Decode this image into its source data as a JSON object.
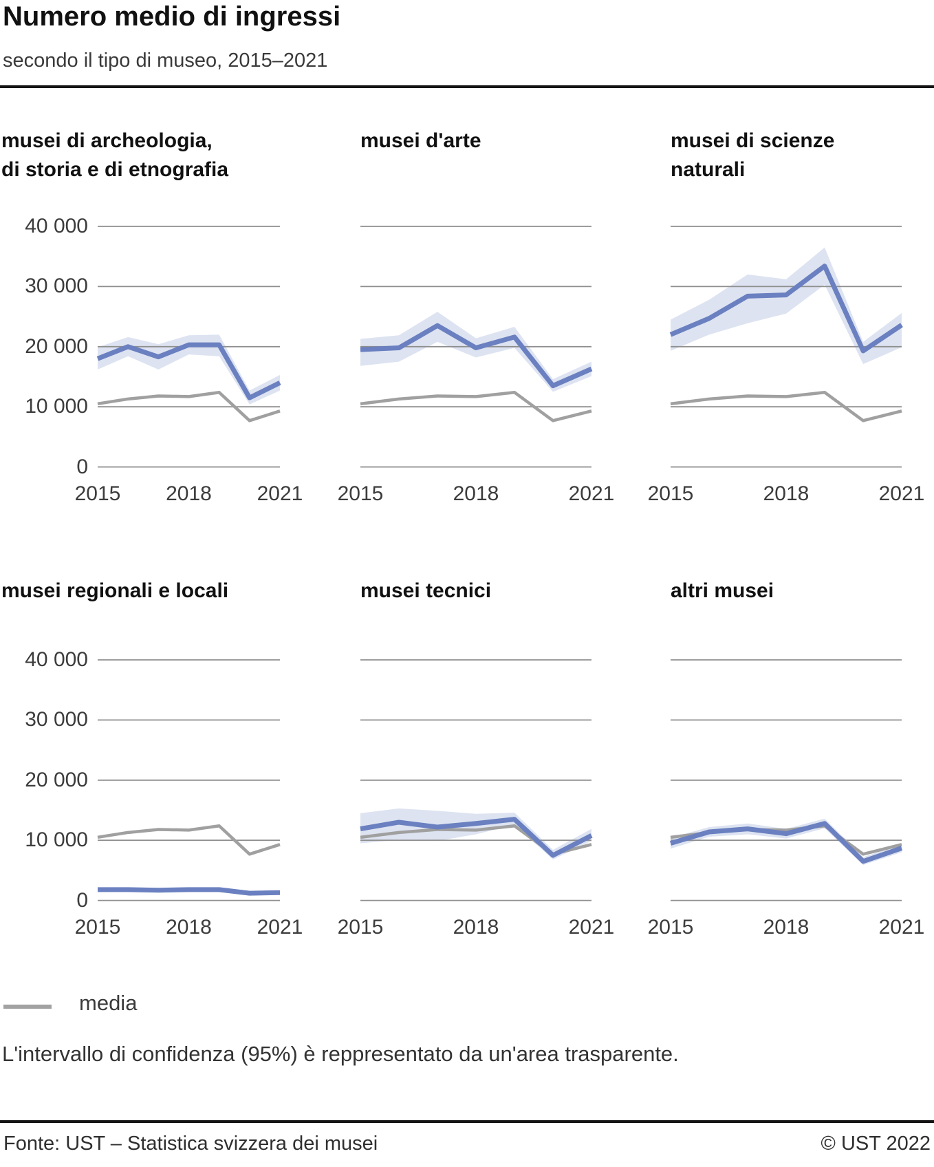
{
  "header": {
    "title": "Numero medio di ingressi",
    "subtitle": "secondo il tipo di museo, 2015–2021"
  },
  "legend": {
    "media_label": "media"
  },
  "note": "L'intervallo di confidenza (95%) è reppresentato da un'area trasparente.",
  "footer": {
    "source": "Fonte: UST – Statistica svizzera dei musei",
    "copyright": "© UST 2022"
  },
  "colors": {
    "line": "#6a80c0",
    "band": "#dde3f1",
    "media": "#a0a0a0",
    "grid": "#8f8f8f",
    "axis_text": "#3c3c3c"
  },
  "chart_data": {
    "type": "line",
    "x": [
      2015,
      2016,
      2017,
      2018,
      2019,
      2020,
      2021
    ],
    "xtick_labels": [
      "2015",
      "2018",
      "2021"
    ],
    "xtick_indices": [
      0,
      3,
      6
    ],
    "ytick_values": [
      40000,
      30000,
      20000,
      10000,
      0
    ],
    "ytick_labels": [
      "40 000",
      "30 000",
      "20 000",
      "10 000",
      "0"
    ],
    "ylim": [
      0,
      40000
    ],
    "grid": true,
    "legend_position": "bottom-left",
    "media_series": {
      "name": "media",
      "values": [
        10500,
        11300,
        11800,
        11700,
        12400,
        7700,
        9300
      ]
    },
    "panels": [
      {
        "title_lines": [
          "musei di archeologia,",
          "di storia e di etnografia"
        ],
        "values": [
          18000,
          20000,
          18300,
          20300,
          20300,
          11500,
          14000
        ],
        "ci_lower": [
          16200,
          18400,
          16200,
          18700,
          18400,
          10400,
          12700
        ],
        "ci_upper": [
          19900,
          21600,
          20400,
          21900,
          22000,
          12700,
          15300
        ]
      },
      {
        "title_lines": [
          "musei d'arte"
        ],
        "values": [
          19500,
          19800,
          23500,
          19800,
          21600,
          13500,
          16300
        ],
        "ci_lower": [
          16800,
          17500,
          20800,
          18200,
          19800,
          12500,
          15100
        ],
        "ci_upper": [
          21300,
          21900,
          25800,
          21400,
          23300,
          14600,
          17500
        ]
      },
      {
        "title_lines": [
          "musei di scienze",
          "naturali"
        ],
        "values": [
          22000,
          24700,
          28400,
          28600,
          33400,
          19300,
          23600
        ],
        "ci_lower": [
          19300,
          22000,
          23900,
          25500,
          30300,
          17100,
          19900
        ],
        "ci_upper": [
          24500,
          27800,
          32000,
          31200,
          36500,
          20800,
          25600
        ]
      },
      {
        "title_lines": [
          "musei regionali e locali"
        ],
        "values": [
          1800,
          1800,
          1700,
          1800,
          1800,
          1200,
          1300
        ],
        "ci_lower": [
          1500,
          1500,
          1400,
          1500,
          1500,
          900,
          1000
        ],
        "ci_upper": [
          2100,
          2100,
          2000,
          2100,
          2100,
          1500,
          1600
        ]
      },
      {
        "title_lines": [
          "musei tecnici"
        ],
        "values": [
          11900,
          13000,
          12200,
          12800,
          13500,
          7500,
          10800
        ],
        "ci_lower": [
          9500,
          10100,
          9900,
          11000,
          12600,
          6800,
          9900
        ],
        "ci_upper": [
          14500,
          15300,
          14900,
          14400,
          14600,
          8400,
          11900
        ]
      },
      {
        "title_lines": [
          "altri musei"
        ],
        "values": [
          9500,
          11400,
          11900,
          11100,
          12800,
          6500,
          8700
        ],
        "ci_lower": [
          8600,
          10600,
          11000,
          10300,
          12000,
          5900,
          8000
        ],
        "ci_upper": [
          10400,
          12200,
          12800,
          11900,
          13600,
          7200,
          9400
        ]
      }
    ]
  }
}
